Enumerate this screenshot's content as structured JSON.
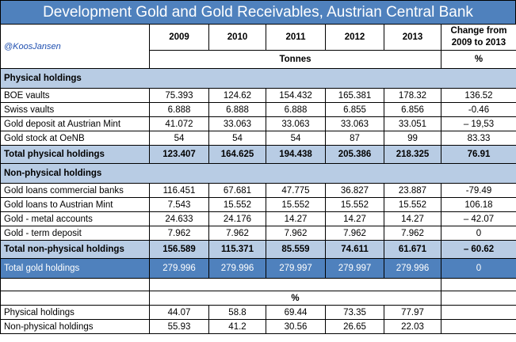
{
  "title": "Development Gold and Gold Receivables, Austrian Central Bank",
  "handle": "@KoosJansen",
  "years": [
    "2009",
    "2010",
    "2011",
    "2012",
    "2013"
  ],
  "change_header_line1": "Change from",
  "change_header_line2": "2009 to 2013",
  "unit_tonnes": "Tonnes",
  "unit_percent": "%",
  "physical": {
    "section_label": "Physical holdings",
    "rows": [
      {
        "label": "BOE vaults",
        "values": [
          "75.393",
          "124.62",
          "154.432",
          "165.381",
          "178.32"
        ],
        "change": "136.52"
      },
      {
        "label": "Swiss vaults",
        "values": [
          "6.888",
          "6.888",
          "6.888",
          "6.855",
          "6.856"
        ],
        "change": "-0.46"
      },
      {
        "label": "Gold deposit at Austrian Mint",
        "values": [
          "41.072",
          "33.063",
          "33.063",
          "33.063",
          "33.051"
        ],
        "change": "– 19,53"
      },
      {
        "label": "Gold stock at OeNB",
        "values": [
          "54",
          "54",
          "54",
          "87",
          "99"
        ],
        "change": "83.33"
      }
    ],
    "total": {
      "label": "Total physical holdings",
      "values": [
        "123.407",
        "164.625",
        "194.438",
        "205.386",
        "218.325"
      ],
      "change": "76.91"
    }
  },
  "nonphysical": {
    "section_label": "Non-physical holdings",
    "rows": [
      {
        "label": "Gold loans commercial banks",
        "values": [
          "116.451",
          "67.681",
          "47.775",
          "36.827",
          "23.887"
        ],
        "change": "-79.49"
      },
      {
        "label": "Gold loans to Austrian Mint",
        "values": [
          "7.543",
          "15.552",
          "15.552",
          "15.552",
          "15.552"
        ],
        "change": "106.18"
      },
      {
        "label": "Gold - metal accounts",
        "values": [
          "24.633",
          "24.176",
          "14.27",
          "14.27",
          "14.27"
        ],
        "change": "– 42.07"
      },
      {
        "label": "Gold - term deposit",
        "values": [
          "7.962",
          "7.962",
          "7.962",
          "7.962",
          "7.962"
        ],
        "change": "0"
      }
    ],
    "total": {
      "label": "Total non-physical holdings",
      "values": [
        "156.589",
        "115.371",
        "85.559",
        "74.611",
        "61.671"
      ],
      "change": "– 60.62"
    }
  },
  "grand_total": {
    "label": "Total gold holdings",
    "values": [
      "279.996",
      "279.996",
      "279.997",
      "279.997",
      "279.996"
    ],
    "change": "0"
  },
  "share": {
    "unit": "%",
    "rows": [
      {
        "label": "Physical holdings",
        "values": [
          "44.07",
          "58.8",
          "69.44",
          "73.35",
          "77.97"
        ]
      },
      {
        "label": "Non-physical holdings",
        "values": [
          "55.93",
          "41.2",
          "30.56",
          "26.65",
          "22.03"
        ]
      }
    ]
  }
}
